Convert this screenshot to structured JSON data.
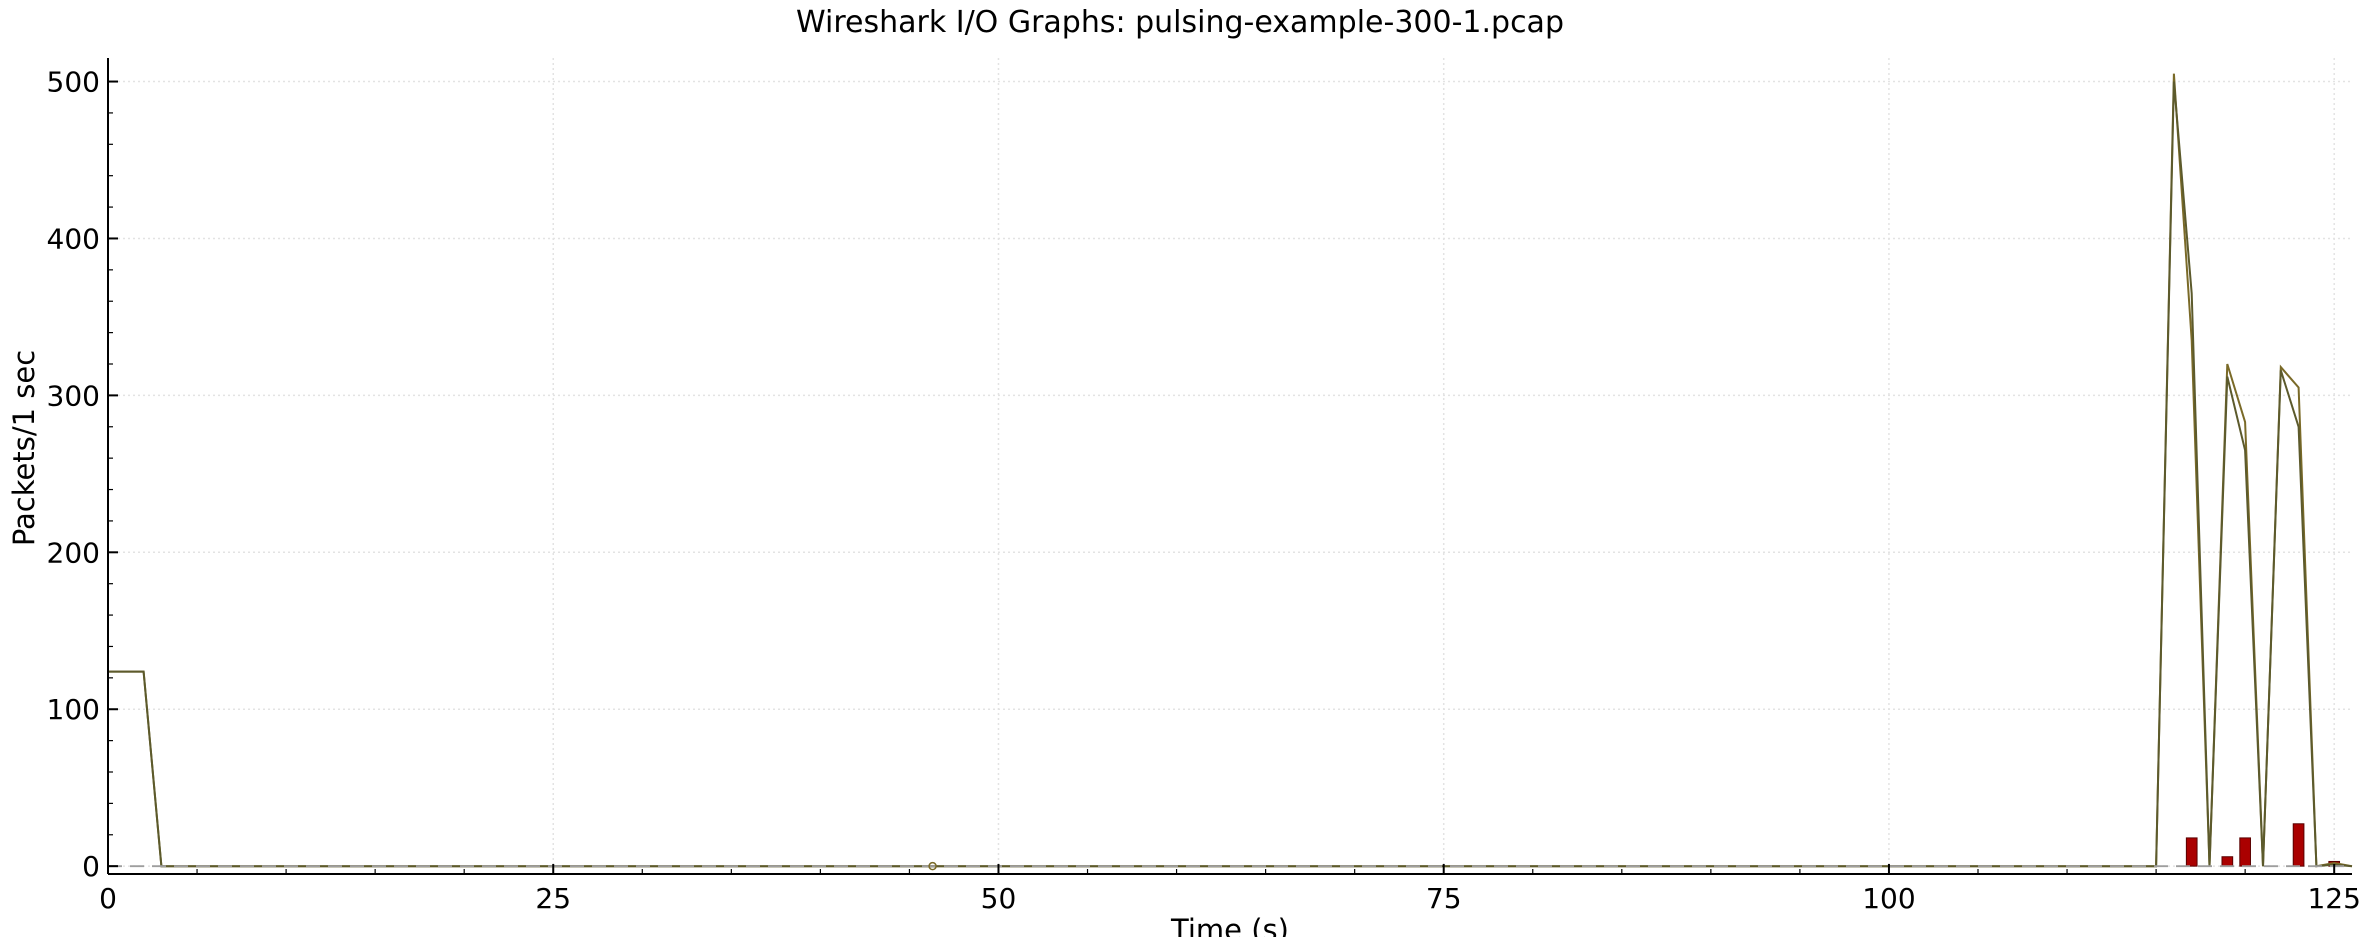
{
  "chart_data": {
    "type": "line",
    "title": "Wireshark I/O Graphs: pulsing-example-300-1.pcap",
    "xlabel": "Time (s)",
    "ylabel": "Packets/1 sec",
    "xlim": [
      0,
      126
    ],
    "ylim": [
      -5,
      515
    ],
    "x_ticks": [
      0,
      25,
      50,
      75,
      100,
      125
    ],
    "y_ticks": [
      0,
      100,
      200,
      300,
      400,
      500
    ],
    "grid": true,
    "legend": "none",
    "series": [
      {
        "color": "#7a6a28",
        "style": "line",
        "x": [
          0,
          2,
          3,
          45,
          115,
          116,
          117,
          118,
          119,
          120,
          121,
          122,
          123,
          124,
          125,
          126
        ],
        "y": [
          124,
          124,
          0,
          0,
          0,
          505,
          335,
          0,
          320,
          283,
          0,
          318,
          305,
          0,
          2,
          0
        ]
      },
      {
        "color": "#5c5a2c",
        "style": "line",
        "x": [
          0,
          2,
          3,
          45,
          115,
          116,
          117,
          118,
          119,
          120,
          121,
          122,
          123,
          124,
          125,
          126
        ],
        "y": [
          124,
          124,
          0,
          0,
          0,
          500,
          365,
          0,
          312,
          265,
          0,
          316,
          280,
          0,
          1,
          0
        ]
      },
      {
        "color": "#aa0000",
        "style": "bar",
        "x": [
          117,
          119,
          120,
          123,
          125
        ],
        "y": [
          18,
          6,
          18,
          27,
          3
        ]
      },
      {
        "color": "#9e9e9e",
        "style": "dashed",
        "x": [
          0,
          126
        ],
        "y": [
          0,
          0
        ]
      },
      {
        "color": "#7a6a28",
        "style": "marker",
        "x": [
          46.3
        ],
        "y": [
          0
        ]
      }
    ]
  }
}
